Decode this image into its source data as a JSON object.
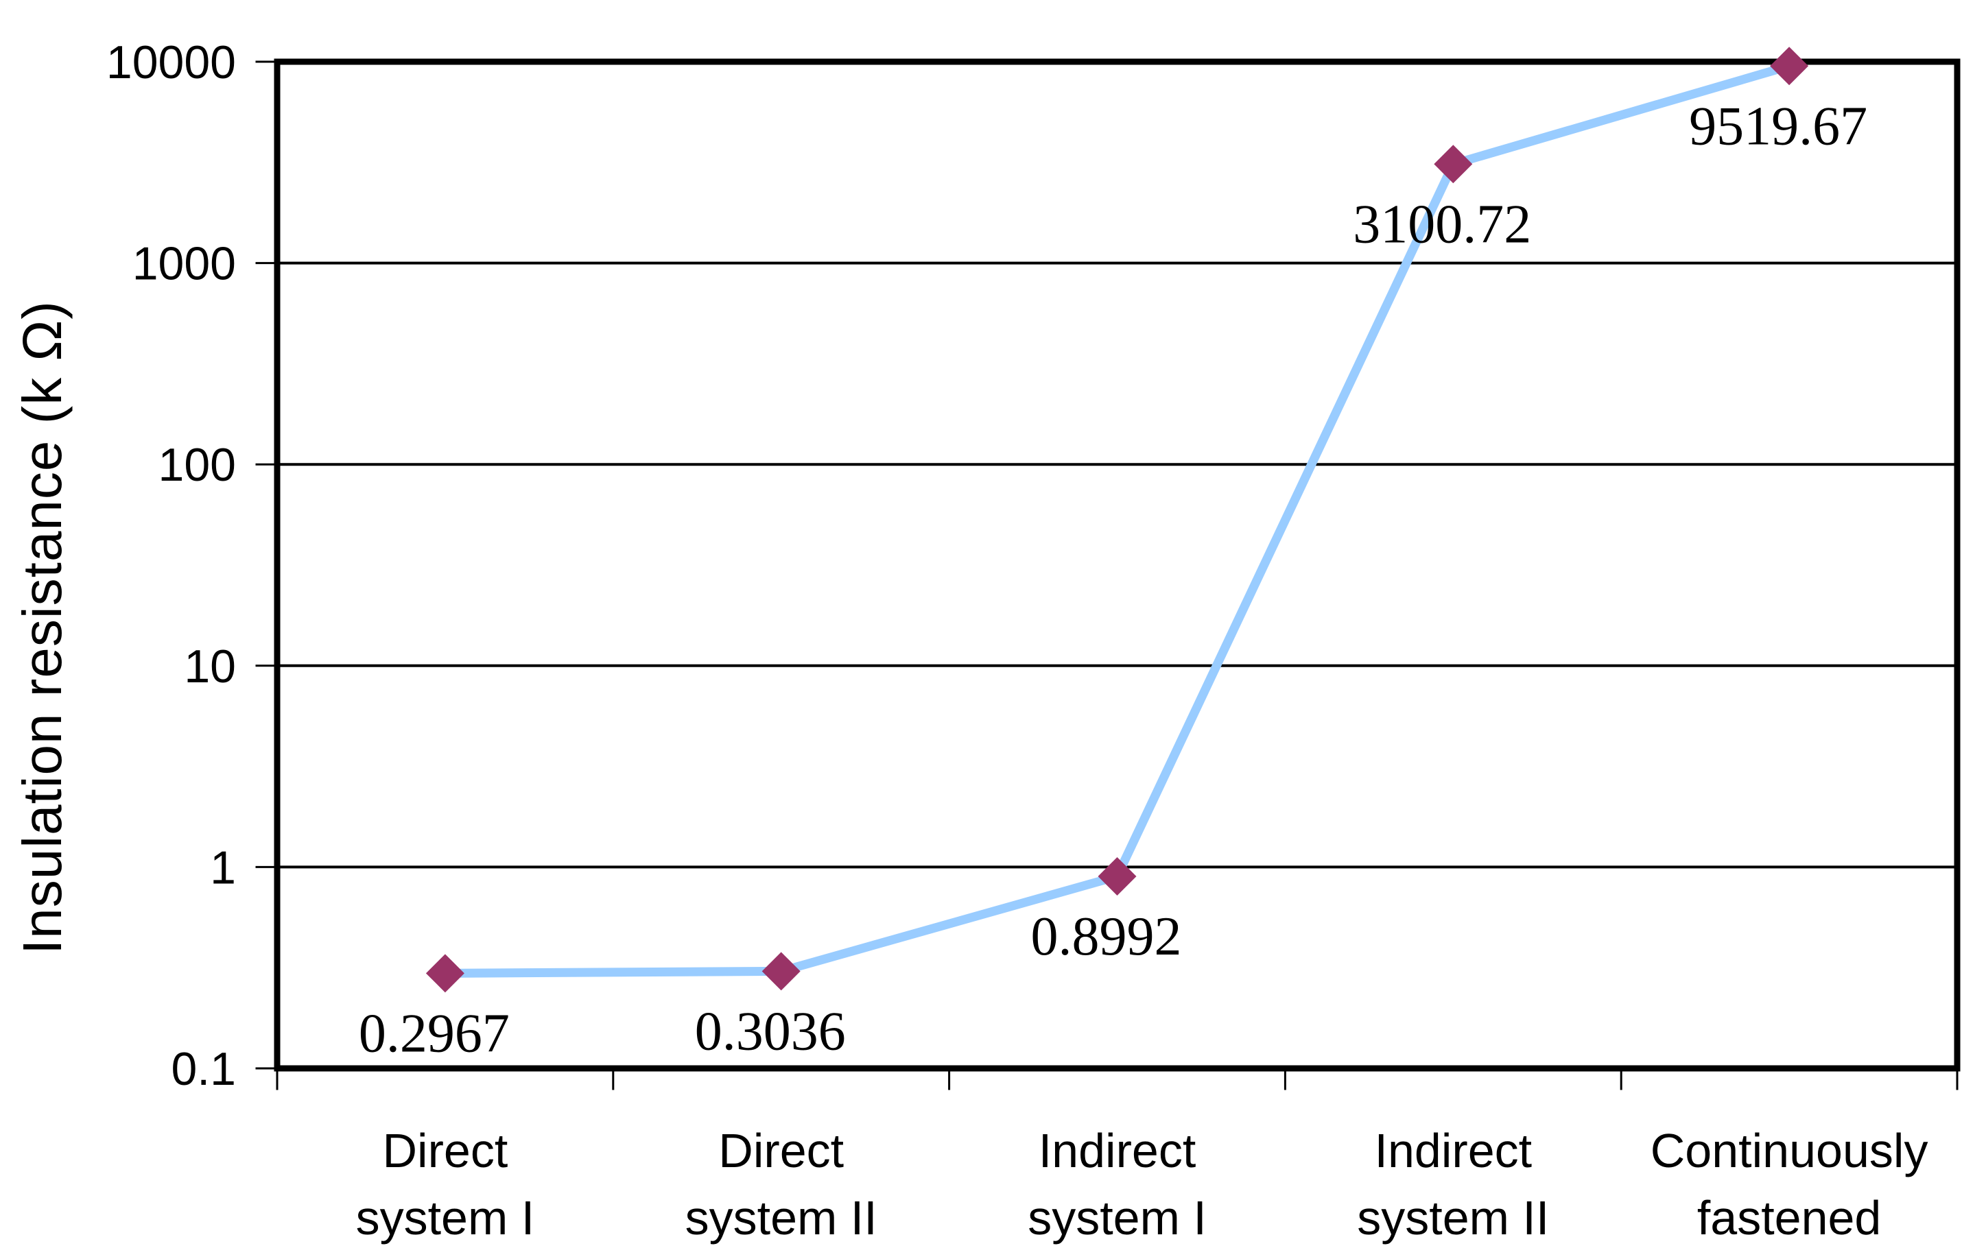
{
  "chart_data": {
    "type": "line",
    "title": "",
    "xlabel": "",
    "ylabel": "Insulation resistance (k Ω)",
    "y_scale": "log",
    "ylim": [
      0.1,
      10000
    ],
    "y_ticks": [
      10000,
      1000,
      100,
      10,
      1,
      0.1
    ],
    "y_tick_labels": [
      "10000",
      "1000",
      "100",
      "10",
      "1",
      "0.1"
    ],
    "categories": [
      "Direct system I",
      "Direct system II",
      "Indirect system I",
      "Indirect system II",
      "Continuously fastened"
    ],
    "category_label_lines": [
      [
        "Direct",
        "system I"
      ],
      [
        "Direct",
        "system II"
      ],
      [
        "Indirect",
        "system I"
      ],
      [
        "Indirect",
        "system II"
      ],
      [
        "Continuously",
        "fastened"
      ]
    ],
    "series": [
      {
        "name": "Insulation resistance",
        "values": [
          0.2967,
          0.3036,
          0.8992,
          3100.72,
          9519.67
        ],
        "data_labels": [
          "0.2967",
          "0.3036",
          "0.8992",
          "3100.72",
          "9519.67"
        ]
      }
    ],
    "grid": "horizontal-decades",
    "legend": "none",
    "marker_shape": "diamond",
    "colors": {
      "line": "#99CCFF",
      "marker": "#993366",
      "axis": "#000000",
      "text": "#000000",
      "background": "#FFFFFF"
    }
  }
}
